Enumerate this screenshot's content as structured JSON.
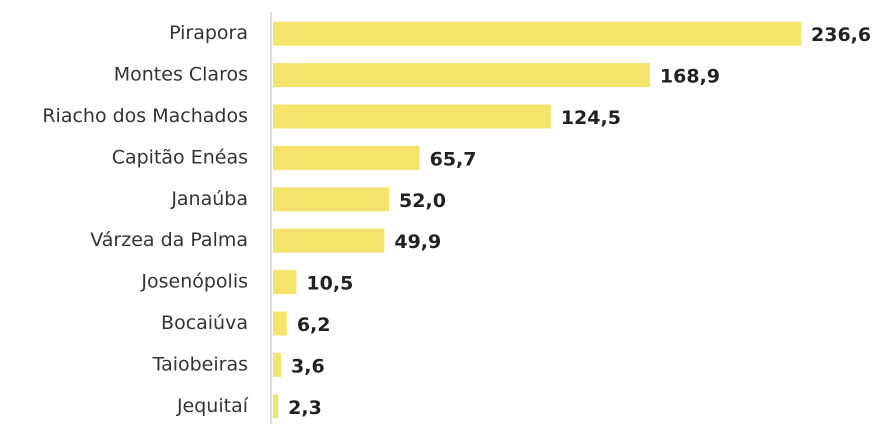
{
  "chart_data": {
    "type": "bar",
    "orientation": "horizontal",
    "categories": [
      "Pirapora",
      "Montes Claros",
      "Riacho dos Machados",
      "Capitão Enéas",
      "Janaúba",
      "Várzea da Palma",
      "Josenópolis",
      "Bocaiúva",
      "Taiobeiras",
      "Jequitaí"
    ],
    "values": [
      236.6,
      168.9,
      124.5,
      65.7,
      52.0,
      49.9,
      10.5,
      6.2,
      3.6,
      2.3
    ],
    "value_labels": [
      "236,6",
      "168,9",
      "124,5",
      "65,7",
      "52,0",
      "49,9",
      "10,5",
      "6,2",
      "3,6",
      "2,3"
    ],
    "color": "#f4e46c"
  }
}
